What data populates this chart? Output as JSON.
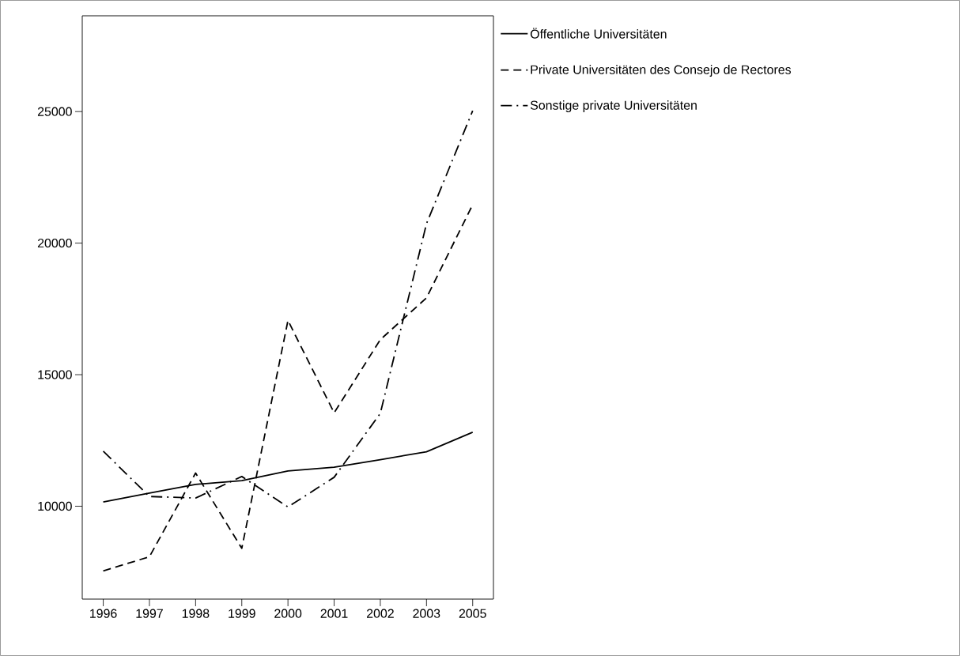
{
  "chart_data": {
    "type": "line",
    "categories": [
      "1996",
      "1997",
      "1998",
      "1999",
      "2000",
      "2001",
      "2002",
      "2003",
      "2005"
    ],
    "series": [
      {
        "name": "Öffentliche Universitäten",
        "color": "#000000",
        "line_style": "solid",
        "values": [
          10160,
          10500,
          10830,
          10970,
          11340,
          11480,
          11770,
          12070,
          12810
        ]
      },
      {
        "name": "Private Universitäten des Consejo de Rectores",
        "color": "#000000",
        "line_style": "dashed",
        "values": [
          7540,
          8080,
          11260,
          8400,
          17060,
          13550,
          16330,
          17920,
          21460
        ]
      },
      {
        "name": "Sonstige private Universitäten",
        "color": "#000000",
        "line_style": "dashdotted",
        "values": [
          12090,
          10370,
          10310,
          11130,
          9970,
          11100,
          13530,
          20740,
          25030
        ]
      }
    ],
    "ylim": [
      6470,
      28640
    ],
    "yticks": [
      10000,
      15000,
      20000,
      25000
    ],
    "legend": "top right"
  }
}
